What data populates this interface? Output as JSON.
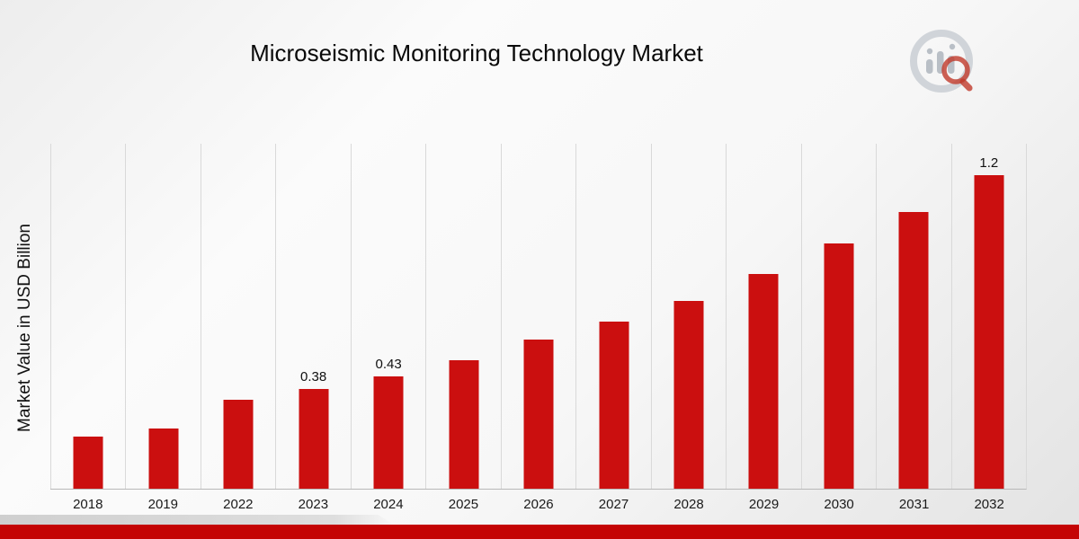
{
  "title": "Microseismic Monitoring Technology Market",
  "colors": {
    "bar": "#cb0f0f",
    "ribbon": "#c40404",
    "grid_line": "#d9d9d9",
    "logo_gray": "#bfc5cb",
    "logo_red": "#c0392b"
  },
  "chart_data": {
    "type": "bar",
    "title": "Microseismic Monitoring Technology Market",
    "xlabel": "",
    "ylabel": "Market Value in USD Billion",
    "categories": [
      "2018",
      "2019",
      "2022",
      "2023",
      "2024",
      "2025",
      "2026",
      "2027",
      "2028",
      "2029",
      "2030",
      "2031",
      "2032"
    ],
    "values": [
      0.2,
      0.23,
      0.34,
      0.38,
      0.43,
      0.49,
      0.57,
      0.64,
      0.72,
      0.82,
      0.94,
      1.06,
      1.2
    ],
    "data_labels": [
      "",
      "",
      "",
      "0.38",
      "0.43",
      "",
      "",
      "",
      "",
      "",
      "",
      "",
      "1.2"
    ],
    "ylim": [
      0,
      1.32
    ],
    "grid": "vertical",
    "legend": "none"
  }
}
